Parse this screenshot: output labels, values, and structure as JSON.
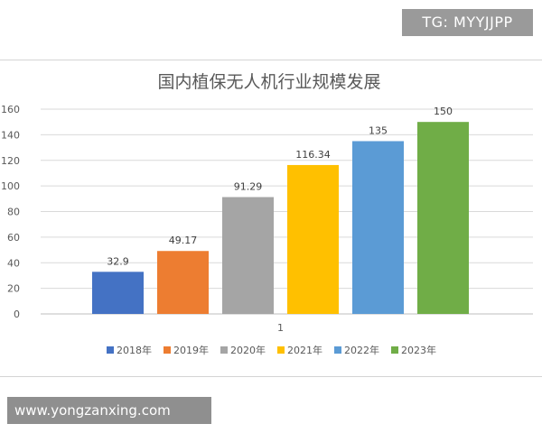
{
  "watermark_top": "TG: MYYJJPP",
  "watermark_bottom": "www.yongzanxing.com",
  "chart_data": {
    "type": "bar",
    "title": "国内植保无人机行业规模发展",
    "categories": [
      "1"
    ],
    "ylim": [
      0,
      160
    ],
    "yticks": [
      0,
      20,
      40,
      60,
      80,
      100,
      120,
      140,
      160
    ],
    "grid": true,
    "legend_position": "bottom",
    "series": [
      {
        "name": "2018年",
        "values": [
          32.9
        ],
        "label": "32.9",
        "color": "#4472c4"
      },
      {
        "name": "2019年",
        "values": [
          49.17
        ],
        "label": "49.17",
        "color": "#ed7d31"
      },
      {
        "name": "2020年",
        "values": [
          91.29
        ],
        "label": "91.29",
        "color": "#a5a5a5"
      },
      {
        "name": "2021年",
        "values": [
          116.34
        ],
        "label": "116.34",
        "color": "#ffc000"
      },
      {
        "name": "2022年",
        "values": [
          135
        ],
        "label": "135",
        "color": "#5b9bd5"
      },
      {
        "name": "2023年",
        "values": [
          150
        ],
        "label": "150",
        "color": "#70ad47"
      }
    ]
  }
}
